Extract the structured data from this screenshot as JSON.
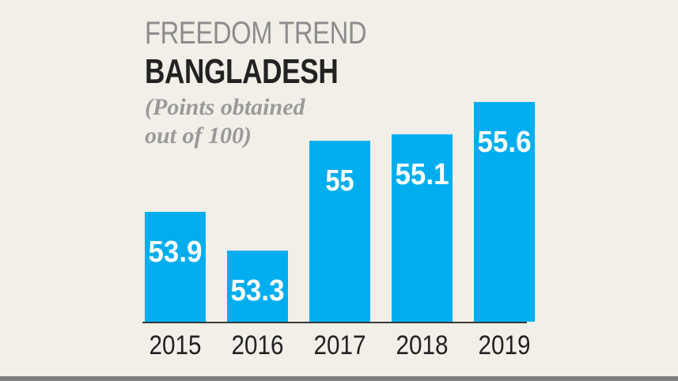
{
  "chart_data": {
    "type": "bar",
    "title": "FREEDOM TREND",
    "subtitle": "BANGLADESH",
    "note_lines": [
      "(Points obtained",
      "out of 100)"
    ],
    "categories": [
      "2015",
      "2016",
      "2017",
      "2018",
      "2019"
    ],
    "values": [
      53.9,
      53.3,
      55,
      55.1,
      55.6
    ],
    "value_labels": [
      "53.9",
      "53.3",
      "55",
      "55.1",
      "55.6"
    ],
    "ylim": [
      52.2,
      56.2
    ],
    "grid": false,
    "legend": "none",
    "colors": {
      "bar": "#00aeef",
      "bar_label": "#ffffff",
      "axis": "#3a3a3a",
      "tick_label": "#222222"
    }
  }
}
